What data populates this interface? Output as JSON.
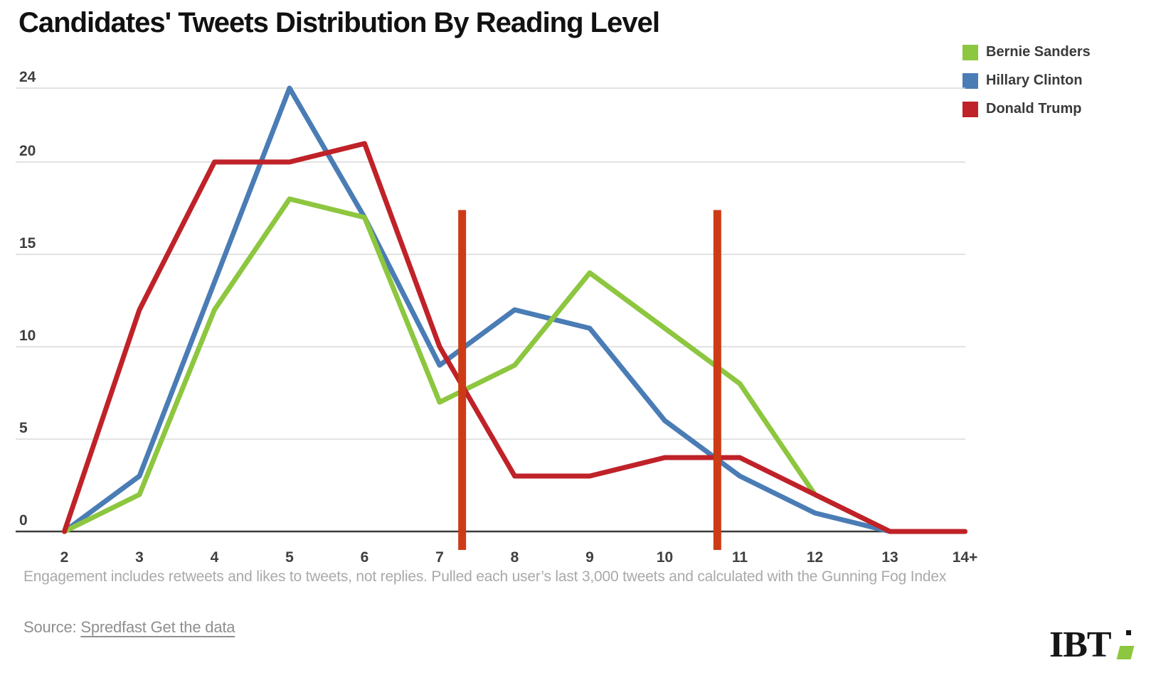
{
  "title": "Candidates' Tweets Distribution By Reading Level",
  "legend": [
    {
      "label": "Bernie Sanders",
      "color": "#8dc63f"
    },
    {
      "label": "Hillary Clinton",
      "color": "#4a7cb5"
    },
    {
      "label": "Donald Trump",
      "color": "#bf2228"
    }
  ],
  "chart_data": {
    "type": "line",
    "title": "Candidates' Tweets Distribution By Reading Level",
    "xlabel": "",
    "ylabel": "",
    "categories": [
      "2",
      "3",
      "4",
      "5",
      "6",
      "7",
      "8",
      "9",
      "10",
      "11",
      "12",
      "13",
      "14+"
    ],
    "series": [
      {
        "name": "Bernie Sanders",
        "color": "#8dc63f",
        "values": [
          0,
          2,
          12,
          18,
          17,
          7,
          9,
          14,
          11,
          8,
          2,
          0,
          0
        ]
      },
      {
        "name": "Hillary Clinton",
        "color": "#4a7cb5",
        "values": [
          0,
          3,
          13.5,
          24,
          17,
          9,
          12,
          11,
          6,
          3,
          1,
          0,
          0
        ]
      },
      {
        "name": "Donald Trump",
        "color": "#bf2228",
        "values": [
          0,
          12,
          20,
          20,
          21,
          10,
          3,
          3,
          4,
          4,
          2,
          0,
          0
        ]
      }
    ],
    "z_order": [
      "Hillary Clinton",
      "Bernie Sanders",
      "Donald Trump"
    ],
    "y_ticks": [
      0,
      5,
      10,
      15,
      20,
      24
    ],
    "ylim": [
      0,
      24
    ],
    "grid": true,
    "legend_position": "top-right",
    "vertical_markers": [
      {
        "x": 7.3,
        "y_top": 17.4,
        "y_bottom": -1
      },
      {
        "x": 10.7,
        "y_top": 17.4,
        "y_bottom": -1
      }
    ],
    "marker_color": "#cc3b16",
    "grid_color": "#d9d9d9",
    "axis_color": "#3a3a3a",
    "tick_label_color": "#3f3f3f"
  },
  "footnote": "Engagement includes retweets and likes to tweets, not replies. Pulled each user’s last 3,000 tweets and calculated with the Gunning Fog Index",
  "source": {
    "prefix": "Source: ",
    "link": "Spredfast Get the data"
  },
  "logo": {
    "text": "IBT"
  }
}
